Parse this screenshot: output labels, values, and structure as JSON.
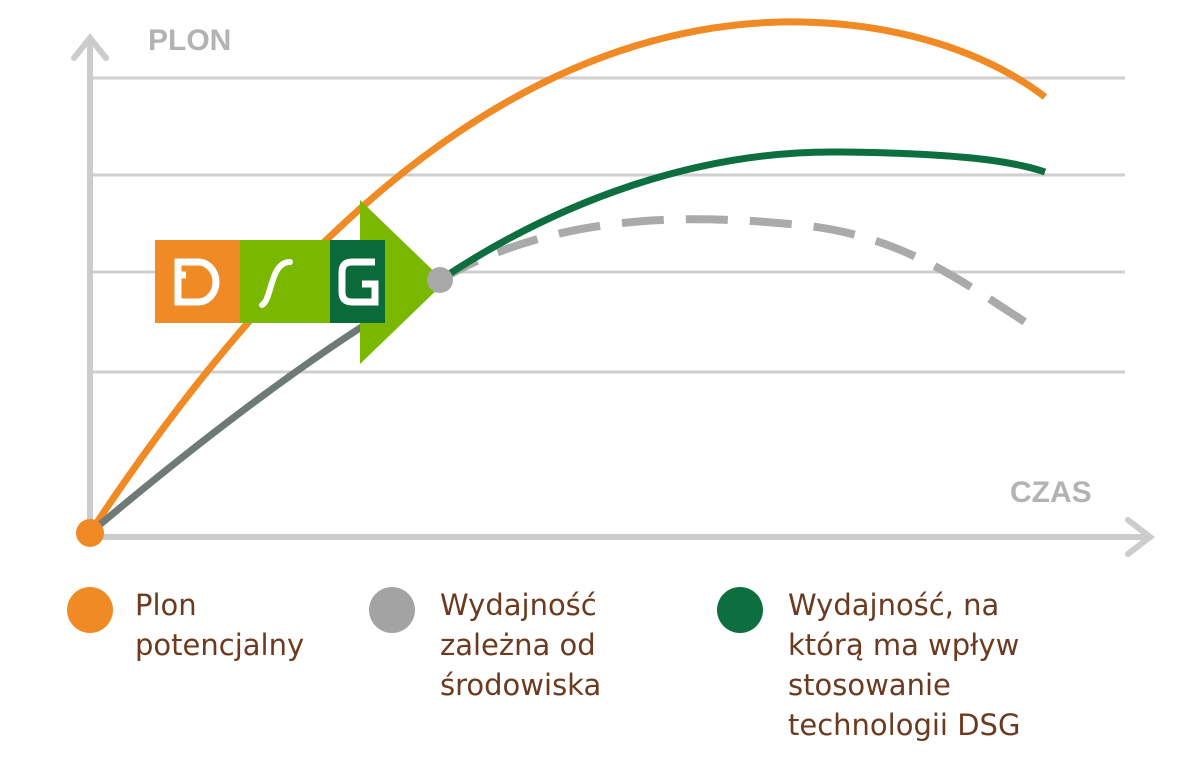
{
  "axes": {
    "y_label": "PLON",
    "x_label": "CZAS"
  },
  "legend": [
    {
      "lines": [
        "Plon",
        "potencjalny"
      ]
    },
    {
      "lines": [
        "Wydajność",
        "zależna od",
        "środowiska"
      ]
    },
    {
      "lines": [
        "Wydajność, na",
        "którą ma wpływ",
        "stosowanie",
        "technologii DSG"
      ]
    }
  ]
}
